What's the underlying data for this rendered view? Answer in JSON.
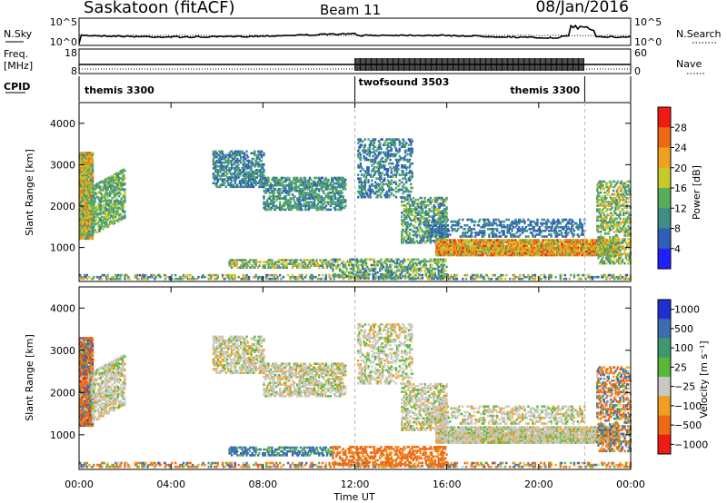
{
  "header": {
    "title": "Saskatoon (fitACF)",
    "beam": "Beam 11",
    "date": "08/Jan/2016"
  },
  "top_panels": {
    "noise": {
      "left_label": "N.Sky",
      "right_label": "N.Search",
      "ticks_left": [
        "10^5",
        "10^0"
      ],
      "ticks_right": [
        "10^5",
        "10^0"
      ]
    },
    "freq": {
      "left_label_1": "Freq.",
      "left_label_2": "[MHz]",
      "right_label": "Nave",
      "ticks_left": [
        "18",
        "8"
      ],
      "ticks_right": [
        "60",
        "0"
      ]
    },
    "cpid": {
      "label": "CPID",
      "segments": [
        {
          "name": "themis 3300",
          "start": 0,
          "end": 12
        },
        {
          "name": "twofsound 3503",
          "start": 12,
          "end": 22
        },
        {
          "name": "themis 3300",
          "start": 22,
          "end": 24
        }
      ]
    }
  },
  "chart_data": [
    {
      "type": "heatmap",
      "quantity": "Power",
      "ylabel": "Slant Range [km]",
      "ylim": [
        180,
        4500
      ],
      "yticks": [
        "1000",
        "2000",
        "3000",
        "4000"
      ],
      "colorbar_label": "Power [dB]",
      "colorbar_ticks": [
        "4",
        "8",
        "12",
        "16",
        "20",
        "24",
        "28"
      ],
      "colorbar_colors": [
        "#2020ff",
        "#2f5fb8",
        "#3e8e86",
        "#58ac5a",
        "#c8c828",
        "#f0a020",
        "#ee6a12",
        "#ee1c12"
      ],
      "scale_range": [
        0,
        32
      ]
    },
    {
      "type": "heatmap",
      "quantity": "Velocity",
      "ylabel": "Slant Range [km]",
      "ylim": [
        180,
        4500
      ],
      "yticks": [
        "1000",
        "2000",
        "3000",
        "4000"
      ],
      "colorbar_label": "Velocity [m s⁻¹]",
      "colorbar_ticks": [
        "1000",
        "500",
        "100",
        "25",
        "−25",
        "−100",
        "−500",
        "−1000"
      ],
      "colorbar_colors": [
        "#2030d0",
        "#3a6eb0",
        "#3e9a6e",
        "#58b83a",
        "#c8c8c0",
        "#f0a020",
        "#ee6a12",
        "#ee1c12"
      ]
    }
  ],
  "x_axis": {
    "label": "Time UT",
    "ticks": [
      "00:00",
      "04:00",
      "08:00",
      "12:00",
      "16:00",
      "20:00",
      "00:00"
    ],
    "range_hours": [
      0,
      24
    ]
  },
  "scatter_regions": [
    {
      "t0": 0.0,
      "t1": 0.6,
      "r0": 1200,
      "r1": 3300,
      "p": 0.9,
      "pw": [
        10,
        26
      ],
      "v": [
        -600,
        300
      ]
    },
    {
      "t0": 0.5,
      "t1": 2.0,
      "r0": 1500,
      "r1": 2700,
      "p": 0.55,
      "pw": [
        8,
        18
      ],
      "v": [
        -40,
        40
      ],
      "slope": 900
    },
    {
      "t0": 5.8,
      "t1": 8.0,
      "r0": 2450,
      "r1": 3350,
      "p": 0.5,
      "pw": [
        4,
        14
      ],
      "v": [
        -40,
        40
      ]
    },
    {
      "t0": 8.0,
      "t1": 11.6,
      "r0": 1900,
      "r1": 2700,
      "p": 0.5,
      "pw": [
        6,
        16
      ],
      "v": [
        -40,
        40
      ]
    },
    {
      "t0": 6.5,
      "t1": 11.0,
      "r0": 500,
      "r1": 700,
      "p": 0.45,
      "pw": [
        8,
        22
      ],
      "v": [
        40,
        300
      ]
    },
    {
      "t0": 0.0,
      "t1": 24.0,
      "r0": 180,
      "r1": 330,
      "p": 0.35,
      "pw": [
        4,
        24
      ],
      "v": [
        -300,
        200
      ]
    },
    {
      "t0": 12.1,
      "t1": 14.5,
      "r0": 2200,
      "r1": 3600,
      "p": 0.35,
      "pw": [
        4,
        14
      ],
      "v": [
        -40,
        40
      ]
    },
    {
      "t0": 14.0,
      "t1": 16.0,
      "r0": 1100,
      "r1": 2200,
      "p": 0.45,
      "pw": [
        6,
        18
      ],
      "v": [
        -40,
        40
      ]
    },
    {
      "t0": 15.5,
      "t1": 23.5,
      "r0": 800,
      "r1": 1200,
      "p": 0.85,
      "pw": [
        14,
        30
      ],
      "v": [
        -40,
        40
      ]
    },
    {
      "t0": 15.0,
      "t1": 22.0,
      "r0": 1250,
      "r1": 1700,
      "p": 0.35,
      "pw": [
        4,
        12
      ],
      "v": [
        -40,
        40
      ]
    },
    {
      "t0": 11.0,
      "t1": 16.0,
      "r0": 200,
      "r1": 700,
      "p": 0.4,
      "pw": [
        6,
        20
      ],
      "v": [
        -300,
        -60
      ]
    },
    {
      "t0": 22.5,
      "t1": 24.0,
      "r0": 600,
      "r1": 2600,
      "p": 0.4,
      "pw": [
        8,
        22
      ],
      "v": [
        -400,
        300
      ]
    }
  ]
}
